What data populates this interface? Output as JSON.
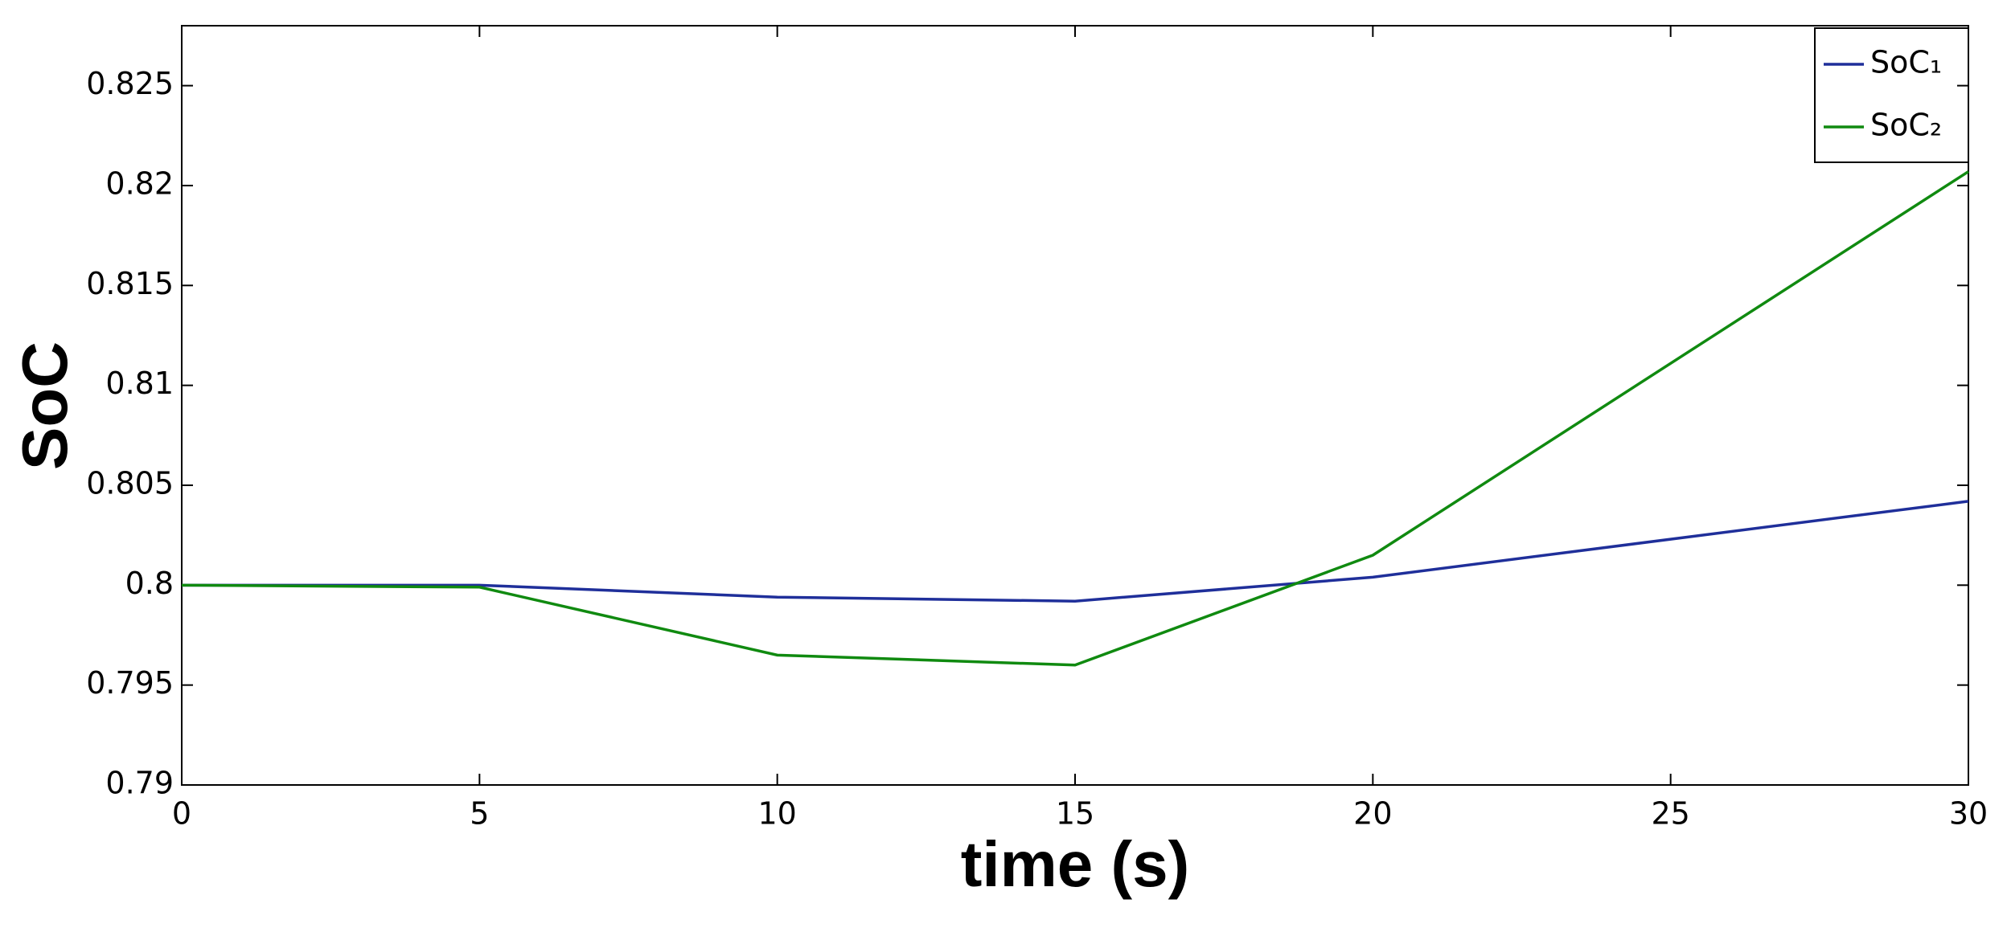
{
  "chart_data": {
    "type": "line",
    "x_label": "time (s)",
    "y_label": "SoC",
    "xlim": [
      0,
      30
    ],
    "xticks": [
      0,
      5,
      10,
      15,
      20,
      25,
      30
    ],
    "ylim": [
      0.79,
      0.828
    ],
    "yticks": [
      0.79,
      0.795,
      0.8,
      0.805,
      0.81,
      0.815,
      0.82,
      0.825
    ],
    "grid": false,
    "legend": "upper right",
    "x": [
      0,
      5,
      10,
      15,
      20,
      30
    ],
    "series": [
      {
        "name": "SoC₁",
        "color": "#1f2f9a",
        "values": [
          0.8,
          0.8,
          0.7994,
          0.7992,
          0.8004,
          0.8042
        ]
      },
      {
        "name": "SoC₂",
        "color": "#108a10",
        "values": [
          0.8,
          0.7999,
          0.7965,
          0.796,
          0.8015,
          0.8207
        ]
      }
    ]
  }
}
